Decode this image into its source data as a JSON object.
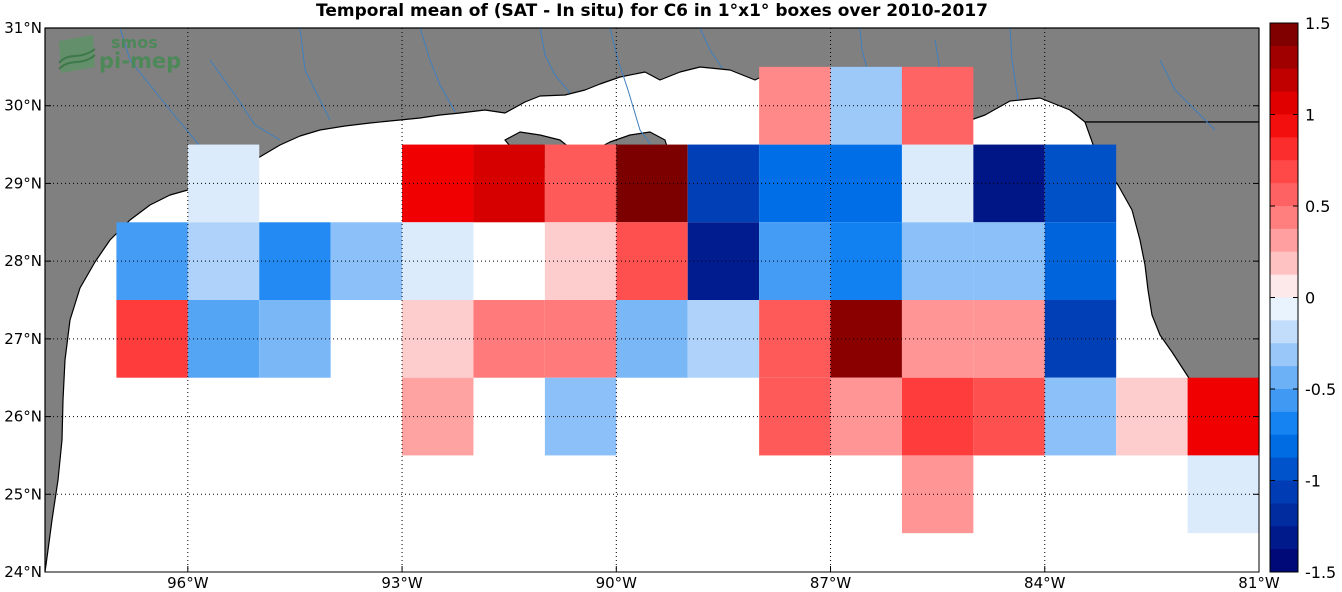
{
  "title": "Temporal mean of (SAT - In situ) for C6 in 1°x1° boxes over 2010-2017",
  "logo": {
    "line1": "smos",
    "line2": "pi-mep"
  },
  "map": {
    "lon_range": [
      -98,
      -81
    ],
    "lat_range": [
      24,
      31
    ],
    "x_ticks": [
      {
        "lon": -96,
        "label": "96°W"
      },
      {
        "lon": -93,
        "label": "93°W"
      },
      {
        "lon": -90,
        "label": "90°W"
      },
      {
        "lon": -87,
        "label": "87°W"
      },
      {
        "lon": -84,
        "label": "84°W"
      },
      {
        "lon": -81,
        "label": "81°W"
      }
    ],
    "y_ticks": [
      {
        "lat": 24,
        "label": "24°N"
      },
      {
        "lat": 25,
        "label": "25°N"
      },
      {
        "lat": 26,
        "label": "26°N"
      },
      {
        "lat": 27,
        "label": "27°N"
      },
      {
        "lat": 28,
        "label": "28°N"
      },
      {
        "lat": 29,
        "label": "29°N"
      },
      {
        "lat": 30,
        "label": "30°N"
      },
      {
        "lat": 31,
        "label": "31°N"
      }
    ],
    "grid": true,
    "land_color": "#808080",
    "river_color": "#3f7fbf"
  },
  "colorbar": {
    "min": -1.5,
    "max": 1.5,
    "ticks": [
      {
        "value": 1.5,
        "label": "1.5"
      },
      {
        "value": 1,
        "label": "1"
      },
      {
        "value": 0.5,
        "label": "0.5"
      },
      {
        "value": 0,
        "label": "0"
      },
      {
        "value": -0.5,
        "label": "-0.5"
      },
      {
        "value": -1,
        "label": "-1"
      },
      {
        "value": -1.5,
        "label": "-1.5"
      }
    ]
  },
  "chart_data": {
    "type": "heatmap",
    "title": "Temporal mean of (SAT - In situ) for C6 in 1°x1° boxes over 2010-2017",
    "xlabel": "",
    "ylabel": "",
    "xlim": [
      -98,
      -81
    ],
    "ylim": [
      24,
      31
    ],
    "vrange": [
      -1.5,
      1.5
    ],
    "cells": [
      {
        "lon": -95.5,
        "lat": 29,
        "value": -0.1
      },
      {
        "lon": -92.5,
        "lat": 29,
        "value": 1.0
      },
      {
        "lon": -91.5,
        "lat": 29,
        "value": 1.1
      },
      {
        "lon": -90.5,
        "lat": 29,
        "value": 0.6
      },
      {
        "lon": -89.5,
        "lat": 29,
        "value": 1.45
      },
      {
        "lon": -88.5,
        "lat": 29,
        "value": -1.05
      },
      {
        "lon": -87.5,
        "lat": 29,
        "value": -0.8
      },
      {
        "lon": -86.5,
        "lat": 29,
        "value": -0.8
      },
      {
        "lon": -85.5,
        "lat": 29,
        "value": -0.1
      },
      {
        "lon": -84.5,
        "lat": 29,
        "value": -1.35
      },
      {
        "lon": -83.5,
        "lat": 29,
        "value": -0.95
      },
      {
        "lon": -87.5,
        "lat": 30,
        "value": 0.4
      },
      {
        "lon": -86.5,
        "lat": 30,
        "value": -0.3
      },
      {
        "lon": -85.5,
        "lat": 30,
        "value": 0.55
      },
      {
        "lon": -96.5,
        "lat": 28,
        "value": -0.55
      },
      {
        "lon": -95.5,
        "lat": 28,
        "value": -0.25
      },
      {
        "lon": -94.5,
        "lat": 28,
        "value": -0.65
      },
      {
        "lon": -93.5,
        "lat": 28,
        "value": -0.35
      },
      {
        "lon": -92.5,
        "lat": 28,
        "value": -0.1
      },
      {
        "lon": -90.5,
        "lat": 28,
        "value": 0.15
      },
      {
        "lon": -89.5,
        "lat": 28,
        "value": 0.65
      },
      {
        "lon": -88.5,
        "lat": 28,
        "value": -1.3
      },
      {
        "lon": -87.5,
        "lat": 28,
        "value": -0.55
      },
      {
        "lon": -86.5,
        "lat": 28,
        "value": -0.7
      },
      {
        "lon": -85.5,
        "lat": 28,
        "value": -0.35
      },
      {
        "lon": -84.5,
        "lat": 28,
        "value": -0.35
      },
      {
        "lon": -83.5,
        "lat": 28,
        "value": -0.85
      },
      {
        "lon": -96.5,
        "lat": 27,
        "value": 0.75
      },
      {
        "lon": -95.5,
        "lat": 27,
        "value": -0.5
      },
      {
        "lon": -94.5,
        "lat": 27,
        "value": -0.4
      },
      {
        "lon": -92.5,
        "lat": 27,
        "value": 0.15
      },
      {
        "lon": -91.5,
        "lat": 27,
        "value": 0.45
      },
      {
        "lon": -90.5,
        "lat": 27,
        "value": 0.45
      },
      {
        "lon": -89.5,
        "lat": 27,
        "value": -0.4
      },
      {
        "lon": -88.5,
        "lat": 27,
        "value": -0.25
      },
      {
        "lon": -87.5,
        "lat": 27,
        "value": 0.6
      },
      {
        "lon": -86.5,
        "lat": 27,
        "value": 1.4
      },
      {
        "lon": -85.5,
        "lat": 27,
        "value": 0.35
      },
      {
        "lon": -84.5,
        "lat": 27,
        "value": 0.35
      },
      {
        "lon": -83.5,
        "lat": 27,
        "value": -1.05
      },
      {
        "lon": -92.5,
        "lat": 26,
        "value": 0.3
      },
      {
        "lon": -90.5,
        "lat": 26,
        "value": -0.35
      },
      {
        "lon": -87.5,
        "lat": 26,
        "value": 0.6
      },
      {
        "lon": -86.5,
        "lat": 26,
        "value": 0.35
      },
      {
        "lon": -85.5,
        "lat": 26,
        "value": 0.75
      },
      {
        "lon": -84.5,
        "lat": 26,
        "value": 0.65
      },
      {
        "lon": -83.5,
        "lat": 26,
        "value": -0.35
      },
      {
        "lon": -82.5,
        "lat": 26,
        "value": 0.15
      },
      {
        "lon": -81.5,
        "lat": 26,
        "value": 1.0
      },
      {
        "lon": -85.5,
        "lat": 25,
        "value": 0.35
      },
      {
        "lon": -81.5,
        "lat": 25,
        "value": -0.1
      }
    ]
  }
}
